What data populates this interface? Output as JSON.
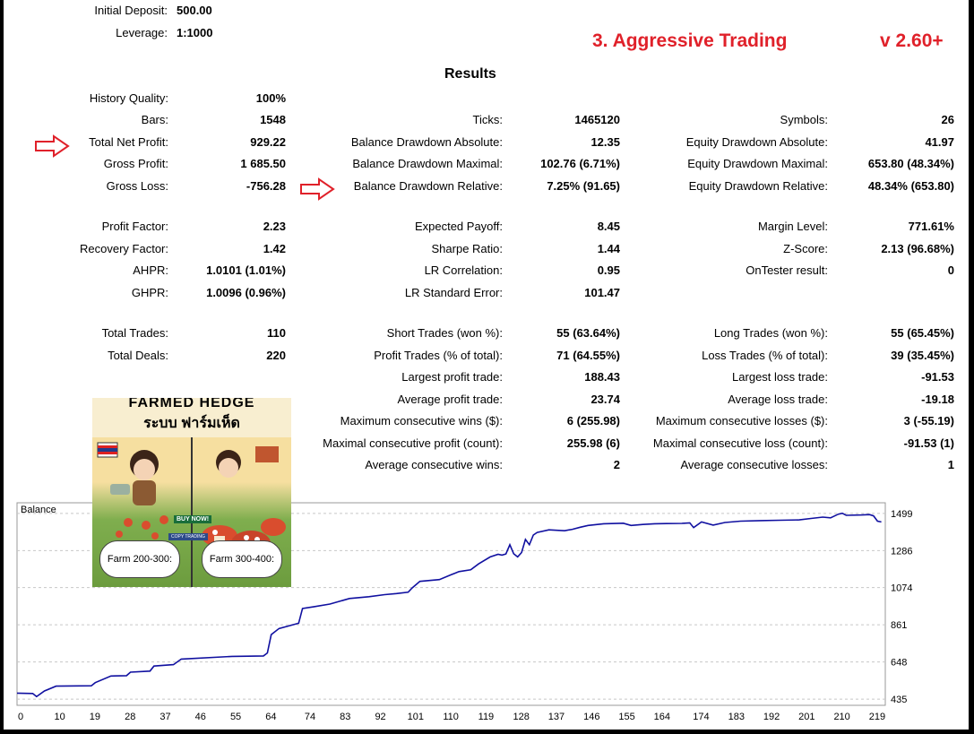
{
  "header": {
    "initial_deposit_label": "Initial Deposit:",
    "initial_deposit_value": "500.00",
    "leverage_label": "Leverage:",
    "leverage_value": "1:1000",
    "strategy_title": "3. Aggressive Trading",
    "version": "v 2.60+",
    "results_title": "Results"
  },
  "col1": [
    {
      "label": "History Quality:",
      "value": "100%"
    },
    {
      "label": "Bars:",
      "value": "1548"
    },
    {
      "label": "Total Net Profit:",
      "value": "929.22"
    },
    {
      "label": "Gross Profit:",
      "value": "1 685.50"
    },
    {
      "label": "Gross Loss:",
      "value": "-756.28"
    },
    {
      "label": "Profit Factor:",
      "value": "2.23"
    },
    {
      "label": "Recovery Factor:",
      "value": "1.42"
    },
    {
      "label": "AHPR:",
      "value": "1.0101 (1.01%)"
    },
    {
      "label": "GHPR:",
      "value": "1.0096 (0.96%)"
    },
    {
      "label": "Total Trades:",
      "value": "110"
    },
    {
      "label": "Total Deals:",
      "value": "220"
    }
  ],
  "col2": [
    {
      "label": "Ticks:",
      "value": "1465120"
    },
    {
      "label": "Balance Drawdown Absolute:",
      "value": "12.35"
    },
    {
      "label": "Balance Drawdown Maximal:",
      "value": "102.76 (6.71%)"
    },
    {
      "label": "Balance Drawdown Relative:",
      "value": "7.25% (91.65)"
    },
    {
      "label": "Expected Payoff:",
      "value": "8.45"
    },
    {
      "label": "Sharpe Ratio:",
      "value": "1.44"
    },
    {
      "label": "LR Correlation:",
      "value": "0.95"
    },
    {
      "label": "LR Standard Error:",
      "value": "101.47"
    },
    {
      "label": "Short Trades (won %):",
      "value": "55 (63.64%)"
    },
    {
      "label": "Profit Trades (% of total):",
      "value": "71 (64.55%)"
    },
    {
      "label": "Largest profit trade:",
      "value": "188.43"
    },
    {
      "label": "Average profit trade:",
      "value": "23.74"
    },
    {
      "label": "Maximum consecutive wins ($):",
      "value": "6 (255.98)"
    },
    {
      "label": "Maximal consecutive profit (count):",
      "value": "255.98 (6)"
    },
    {
      "label": "Average consecutive wins:",
      "value": "2"
    }
  ],
  "col3": [
    {
      "label": "Symbols:",
      "value": "26"
    },
    {
      "label": "Equity Drawdown Absolute:",
      "value": "41.97"
    },
    {
      "label": "Equity Drawdown Maximal:",
      "value": "653.80 (48.34%)"
    },
    {
      "label": "Equity Drawdown Relative:",
      "value": "48.34% (653.80)"
    },
    {
      "label": "Margin Level:",
      "value": "771.61%"
    },
    {
      "label": "Z-Score:",
      "value": "2.13 (96.68%)"
    },
    {
      "label": "OnTester result:",
      "value": "0"
    },
    {
      "label": "Long Trades (won %):",
      "value": "55 (65.45%)"
    },
    {
      "label": "Loss Trades (% of total):",
      "value": "39 (35.45%)"
    },
    {
      "label": "Largest loss trade:",
      "value": "-91.53"
    },
    {
      "label": "Average loss trade:",
      "value": "-19.18"
    },
    {
      "label": "Maximum consecutive losses ($):",
      "value": "3 (-55.19)"
    },
    {
      "label": "Maximal consecutive loss (count):",
      "value": "-91.53 (1)"
    },
    {
      "label": "Average consecutive losses:",
      "value": "1"
    }
  ],
  "banner": {
    "title": "FARMED HEDGE",
    "subtitle": "ระบบ ฟาร์มเห็ด",
    "left_button": "Farm 200-300:",
    "right_button": "Farm 300-400:",
    "buy_tag": "BUY NOW!",
    "copy_tag": "COPY TRADING"
  },
  "colors": {
    "accent_red": "#e0212a",
    "balance_line": "#1010a0"
  },
  "chart_data": {
    "type": "line",
    "title": "Balance",
    "series": [
      {
        "name": "Balance",
        "points": [
          [
            0,
            470
          ],
          [
            4,
            468
          ],
          [
            5,
            450
          ],
          [
            7,
            482
          ],
          [
            10,
            510
          ],
          [
            19,
            512
          ],
          [
            20,
            530
          ],
          [
            24,
            568
          ],
          [
            28,
            570
          ],
          [
            29,
            590
          ],
          [
            34,
            596
          ],
          [
            35,
            625
          ],
          [
            40,
            633
          ],
          [
            42,
            665
          ],
          [
            55,
            680
          ],
          [
            63,
            683
          ],
          [
            64,
            700
          ],
          [
            65,
            805
          ],
          [
            67,
            840
          ],
          [
            72,
            870
          ],
          [
            73,
            955
          ],
          [
            76,
            965
          ],
          [
            80,
            980
          ],
          [
            85,
            1012
          ],
          [
            90,
            1022
          ],
          [
            94,
            1034
          ],
          [
            97,
            1040
          ],
          [
            100,
            1048
          ],
          [
            101,
            1072
          ],
          [
            103,
            1110
          ],
          [
            108,
            1120
          ],
          [
            111,
            1148
          ],
          [
            113,
            1166
          ],
          [
            116,
            1176
          ],
          [
            118,
            1210
          ],
          [
            121,
            1250
          ],
          [
            123,
            1265
          ],
          [
            124,
            1260
          ],
          [
            125,
            1267
          ],
          [
            126,
            1320
          ],
          [
            127,
            1268
          ],
          [
            128,
            1250
          ],
          [
            129,
            1275
          ],
          [
            130,
            1350
          ],
          [
            131,
            1320
          ],
          [
            132,
            1375
          ],
          [
            133,
            1390
          ],
          [
            136,
            1405
          ],
          [
            140,
            1400
          ],
          [
            142,
            1408
          ],
          [
            144,
            1420
          ],
          [
            146,
            1430
          ],
          [
            150,
            1440
          ],
          [
            155,
            1443
          ],
          [
            157,
            1430
          ],
          [
            160,
            1436
          ],
          [
            163,
            1440
          ],
          [
            166,
            1441
          ],
          [
            170,
            1442
          ],
          [
            172,
            1445
          ],
          [
            173,
            1418
          ],
          [
            175,
            1450
          ],
          [
            178,
            1432
          ],
          [
            181,
            1447
          ],
          [
            185,
            1455
          ],
          [
            190,
            1458
          ],
          [
            195,
            1460
          ],
          [
            200,
            1462
          ],
          [
            203,
            1470
          ],
          [
            206,
            1478
          ],
          [
            208,
            1474
          ],
          [
            210,
            1495
          ],
          [
            211,
            1500
          ],
          [
            212,
            1488
          ],
          [
            216,
            1490
          ],
          [
            218,
            1492
          ],
          [
            219,
            1485
          ],
          [
            220,
            1455
          ],
          [
            221,
            1450
          ]
        ]
      }
    ],
    "x_ticks": [
      0,
      10,
      19,
      28,
      37,
      46,
      55,
      64,
      74,
      83,
      92,
      101,
      110,
      119,
      128,
      137,
      146,
      155,
      164,
      174,
      183,
      192,
      201,
      210,
      219
    ],
    "y_ticks": [
      435,
      648,
      861,
      1074,
      1286,
      1499
    ],
    "xlim": [
      0,
      222
    ],
    "ylim": [
      400,
      1560
    ],
    "grid": true
  }
}
